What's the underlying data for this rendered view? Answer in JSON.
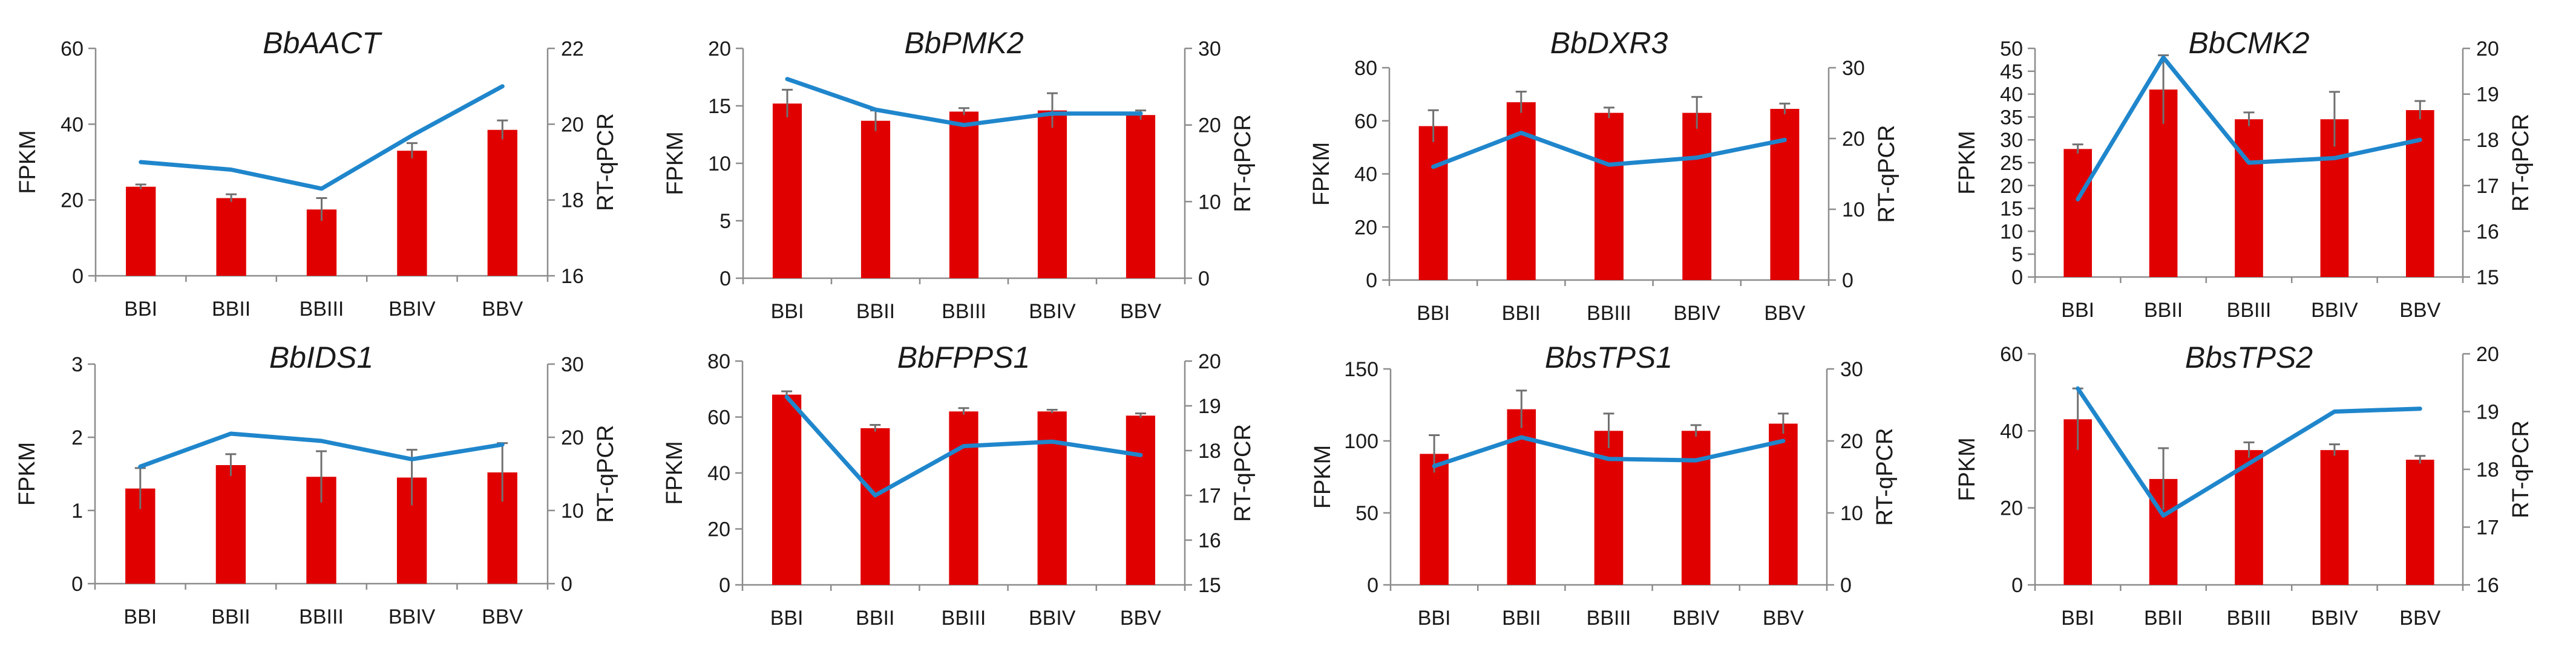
{
  "colors": {
    "bar": "#e00000",
    "line": "#1f86cc",
    "axis": "#8c8c8c",
    "error": "#707070"
  },
  "chart_data": [
    {
      "type": "bar+line",
      "title": "BbAACT",
      "categories": [
        "BBI",
        "BBII",
        "BBIII",
        "BBIV",
        "BBV"
      ],
      "ylabel": "FPKM",
      "y2label": "RT-qPCR",
      "ylim": [
        0,
        60
      ],
      "yticks": [
        0,
        20,
        40,
        60
      ],
      "ytick_labels": [
        "0",
        "20",
        "40",
        "60"
      ],
      "y2lim": [
        16,
        22
      ],
      "y2ticks": [
        16,
        18,
        20,
        22
      ],
      "y2tick_labels": [
        "16",
        "18",
        "20",
        "22"
      ],
      "series": [
        {
          "name": "FPKM",
          "kind": "bar",
          "axis": "left",
          "values": [
            23.5,
            20.5,
            17.5,
            33,
            38.5
          ],
          "errors": [
            0.6,
            1.0,
            3.0,
            2.0,
            2.5
          ]
        },
        {
          "name": "RT-qPCR",
          "kind": "line",
          "axis": "right",
          "values": [
            19.0,
            18.8,
            18.3,
            19.7,
            21.0
          ]
        }
      ]
    },
    {
      "type": "bar+line",
      "title": "BbPMK2",
      "categories": [
        "BBI",
        "BBII",
        "BBIII",
        "BBIV",
        "BBV"
      ],
      "ylabel": "FPKM",
      "y2label": "RT-qPCR",
      "ylim": [
        0,
        20
      ],
      "yticks": [
        0,
        5,
        10,
        15,
        20
      ],
      "ytick_labels": [
        "0",
        "5",
        "10",
        "15",
        "20"
      ],
      "y2lim": [
        0,
        30
      ],
      "y2ticks": [
        0,
        10,
        20,
        30
      ],
      "y2tick_labels": [
        "0",
        "10",
        "20",
        "30"
      ],
      "series": [
        {
          "name": "FPKM",
          "kind": "bar",
          "axis": "left",
          "values": [
            15.2,
            13.7,
            14.5,
            14.6,
            14.2
          ],
          "errors": [
            1.2,
            0.9,
            0.3,
            1.5,
            0.4
          ]
        },
        {
          "name": "RT-qPCR",
          "kind": "line",
          "axis": "right",
          "values": [
            26.0,
            22.0,
            20.0,
            21.5,
            21.5
          ]
        }
      ]
    },
    {
      "type": "bar+line",
      "title": "BbDXR3",
      "categories": [
        "BBI",
        "BBII",
        "BBIII",
        "BBIV",
        "BBV"
      ],
      "ylabel": "FPKM",
      "y2label": "RT-qPCR",
      "ylim": [
        0,
        80
      ],
      "yticks": [
        0,
        20,
        40,
        60,
        80
      ],
      "ytick_labels": [
        "0",
        "20",
        "40",
        "60",
        "80"
      ],
      "y2lim": [
        0,
        30
      ],
      "y2ticks": [
        0,
        10,
        20,
        30
      ],
      "y2tick_labels": [
        "0",
        "10",
        "20",
        "30"
      ],
      "series": [
        {
          "name": "FPKM",
          "kind": "bar",
          "axis": "left",
          "values": [
            58,
            67,
            63,
            63,
            64.5
          ],
          "errors": [
            6,
            4,
            2,
            6,
            2
          ]
        },
        {
          "name": "RT-qPCR",
          "kind": "line",
          "axis": "right",
          "values": [
            16,
            20.8,
            16.3,
            17.3,
            19.8
          ]
        }
      ]
    },
    {
      "type": "bar+line",
      "title": "BbCMK2",
      "categories": [
        "BBI",
        "BBII",
        "BBIII",
        "BBIV",
        "BBV"
      ],
      "ylabel": "FPKM",
      "y2label": "RT-qPCR",
      "ylim": [
        0,
        50
      ],
      "yticks": [
        0,
        5,
        10,
        15,
        20,
        25,
        30,
        35,
        40,
        45,
        50
      ],
      "ytick_labels": [
        "0",
        "5",
        "10",
        "15",
        "20",
        "25",
        "30",
        "35",
        "40",
        "45",
        "50"
      ],
      "y2lim": [
        15,
        20
      ],
      "y2ticks": [
        15,
        16,
        17,
        18,
        19,
        20
      ],
      "y2tick_labels": [
        "15",
        "16",
        "17",
        "18",
        "19",
        "20"
      ],
      "series": [
        {
          "name": "FPKM",
          "kind": "bar",
          "axis": "left",
          "values": [
            28,
            41,
            34.5,
            34.5,
            36.5
          ],
          "errors": [
            1,
            7.5,
            1.5,
            6,
            2
          ]
        },
        {
          "name": "RT-qPCR",
          "kind": "line",
          "axis": "right",
          "values": [
            16.7,
            19.8,
            17.5,
            17.6,
            18.0
          ]
        }
      ]
    },
    {
      "type": "bar+line",
      "title": "BbIDS1",
      "categories": [
        "BBI",
        "BBII",
        "BBIII",
        "BBIV",
        "BBV"
      ],
      "ylabel": "FPKM",
      "y2label": "RT-qPCR",
      "ylim": [
        0,
        3
      ],
      "yticks": [
        0,
        1,
        2,
        3
      ],
      "ytick_labels": [
        "0",
        "1",
        "2",
        "3"
      ],
      "y2lim": [
        0,
        30
      ],
      "y2ticks": [
        0,
        10,
        20,
        30
      ],
      "y2tick_labels": [
        "0",
        "10",
        "20",
        "30"
      ],
      "series": [
        {
          "name": "FPKM",
          "kind": "bar",
          "axis": "left",
          "values": [
            1.3,
            1.62,
            1.46,
            1.45,
            1.52
          ],
          "errors": [
            0.28,
            0.15,
            0.35,
            0.38,
            0.4
          ]
        },
        {
          "name": "RT-qPCR",
          "kind": "line",
          "axis": "right",
          "values": [
            16,
            20.5,
            19.5,
            17,
            19
          ]
        }
      ]
    },
    {
      "type": "bar+line",
      "title": "BbFPPS1",
      "categories": [
        "BBI",
        "BBII",
        "BBIII",
        "BBIV",
        "BBV"
      ],
      "ylabel": "FPKM",
      "y2label": "RT-qPCR",
      "ylim": [
        0,
        80
      ],
      "yticks": [
        0,
        20,
        40,
        60,
        80
      ],
      "ytick_labels": [
        "0",
        "20",
        "40",
        "60",
        "80"
      ],
      "y2lim": [
        15,
        20
      ],
      "y2ticks": [
        15,
        16,
        17,
        18,
        19,
        20
      ],
      "y2tick_labels": [
        "15",
        "16",
        "17",
        "18",
        "19",
        "20"
      ],
      "series": [
        {
          "name": "FPKM",
          "kind": "bar",
          "axis": "left",
          "values": [
            68,
            56,
            62,
            62,
            60.5
          ],
          "errors": [
            1.2,
            1.2,
            1.2,
            0.6,
            0.8
          ]
        },
        {
          "name": "RT-qPCR",
          "kind": "line",
          "axis": "right",
          "values": [
            19.2,
            17.0,
            18.1,
            18.2,
            17.9
          ]
        }
      ]
    },
    {
      "type": "bar+line",
      "title": "BbsTPS1",
      "categories": [
        "BBI",
        "BBII",
        "BBIII",
        "BBIV",
        "BBV"
      ],
      "ylabel": "FPKM",
      "y2label": "RT-qPCR",
      "ylim": [
        0,
        150
      ],
      "yticks": [
        0,
        50,
        100,
        150
      ],
      "ytick_labels": [
        "0",
        "50",
        "100",
        "150"
      ],
      "y2lim": [
        0,
        30
      ],
      "y2ticks": [
        0,
        10,
        20,
        30
      ],
      "y2tick_labels": [
        "0",
        "10",
        "20",
        "30"
      ],
      "series": [
        {
          "name": "FPKM",
          "kind": "bar",
          "axis": "left",
          "values": [
            91,
            122,
            107,
            107,
            112
          ],
          "errors": [
            13,
            13,
            12,
            4,
            7
          ]
        },
        {
          "name": "RT-qPCR",
          "kind": "line",
          "axis": "right",
          "values": [
            16.5,
            20.5,
            17.5,
            17.3,
            20.0
          ]
        }
      ]
    },
    {
      "type": "bar+line",
      "title": "BbsTPS2",
      "categories": [
        "BBI",
        "BBII",
        "BBIII",
        "BBIV",
        "BBV"
      ],
      "ylabel": "FPKM",
      "y2label": "RT-qPCR",
      "ylim": [
        0,
        60
      ],
      "yticks": [
        0,
        20,
        40,
        60
      ],
      "ytick_labels": [
        "0",
        "20",
        "40",
        "60"
      ],
      "y2lim": [
        16,
        20
      ],
      "y2ticks": [
        16,
        17,
        18,
        19,
        20
      ],
      "y2tick_labels": [
        "16",
        "17",
        "18",
        "19",
        "20"
      ],
      "series": [
        {
          "name": "FPKM",
          "kind": "bar",
          "axis": "left",
          "values": [
            43,
            27.5,
            35,
            35,
            32.5
          ],
          "errors": [
            8,
            8,
            2,
            1.5,
            1
          ]
        },
        {
          "name": "RT-qPCR",
          "kind": "line",
          "axis": "right",
          "values": [
            19.4,
            17.2,
            18.1,
            19.0,
            19.05
          ]
        }
      ]
    }
  ]
}
